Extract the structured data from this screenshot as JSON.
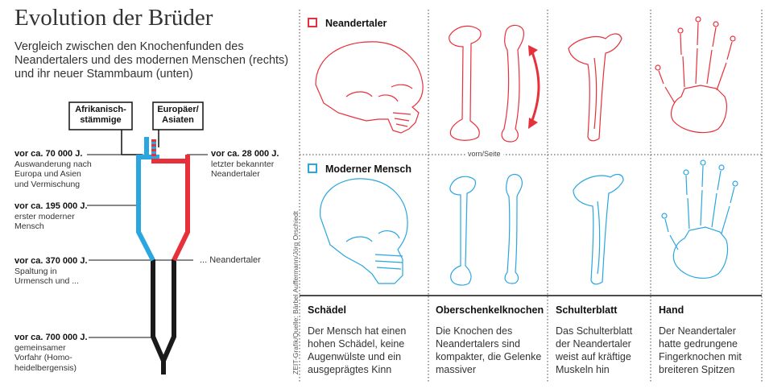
{
  "title": "Evolution der Brüder",
  "subtitle": "Vergleich zwischen den Knochenfunden des Neandertalers und des modernen Menschen (rechts) und ihr neuer Stammbaum (unten)",
  "tree": {
    "box_african": "Afrikanisch-stämmige",
    "box_european": "Europäer/ Asiaten",
    "events": [
      {
        "date": "vor ca. 70 000 J.",
        "text": "Auswanderung nach Europa und Asien und Vermischung"
      },
      {
        "date": "vor ca. 195 000 J.",
        "text": "erster moderner Mensch"
      },
      {
        "date": "vor ca. 370 000 J.",
        "text": "Spaltung in Urmensch und ..."
      },
      {
        "date": "vor ca. 700 000 J.",
        "text": "gemeinsamer Vorfahr (Homo-heidelbergensis)"
      },
      {
        "date": "vor ca. 28 000 J.",
        "text": "letzter bekannter Neandertaler"
      }
    ],
    "neander_branch_label": "... Neandertaler"
  },
  "legend": {
    "neanderthal": "Neandertaler",
    "modern": "Moderner Mensch",
    "colors": {
      "neanderthal": "#e8303a",
      "modern": "#2aa6e0",
      "ancestor": "#1a1a1a"
    }
  },
  "femur_view_label": "vorn/Seite",
  "credit": "ZEIT-Grafik/Quelle: Bärbel Auffermann/Jörg Orschiedt",
  "categories": [
    {
      "name": "Schädel",
      "text": "Der Mensch hat einen hohen Schädel, keine Augenwülste und ein ausgeprägtes Kinn"
    },
    {
      "name": "Oberschenkelknochen",
      "text": "Die Knochen des Neandertalers sind kompakter, die Gelenke massiver"
    },
    {
      "name": "Schulterblatt",
      "text": "Das Schulterblatt der Neandertaler weist auf kräftige Muskeln hin"
    },
    {
      "name": "Hand",
      "text": "Der Neandertaler hatte gedrungene Fingerknochen mit breiteren Spitzen"
    }
  ]
}
